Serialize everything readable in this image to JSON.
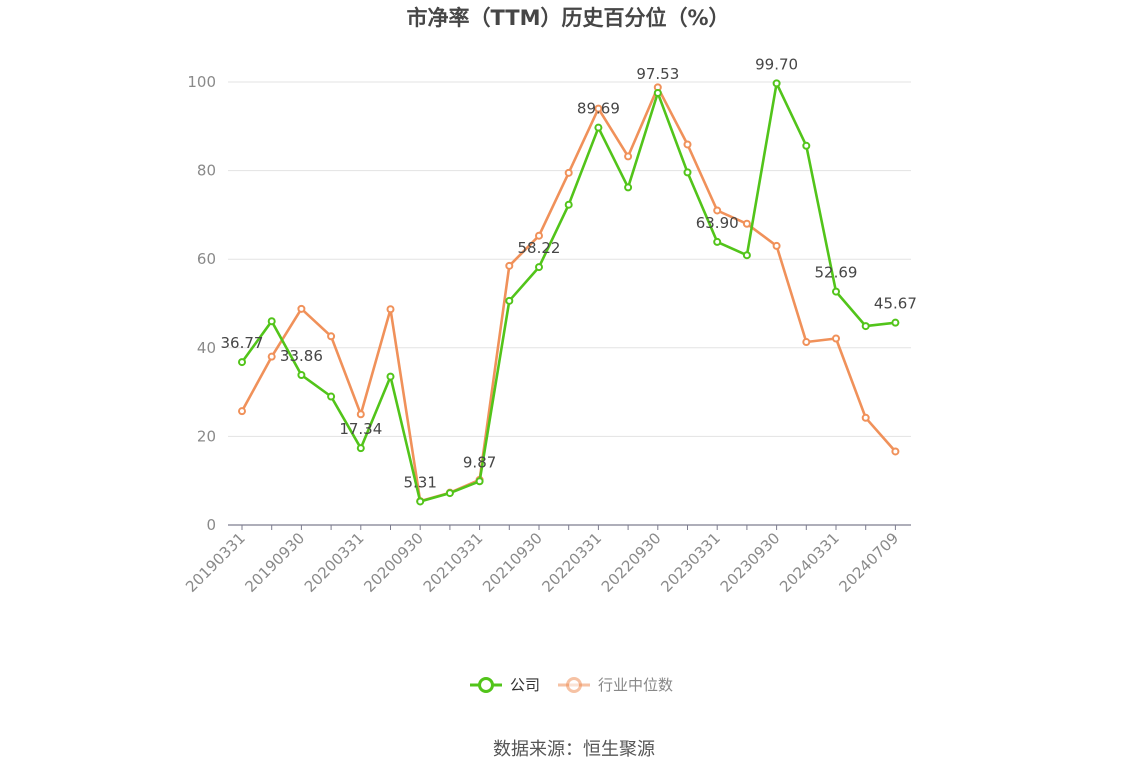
{
  "chart_data": {
    "type": "line",
    "title": "市净率（TTM）历史百分位（%）",
    "source": "数据来源：恒生聚源",
    "ylim": [
      0,
      100
    ],
    "yticks": [
      0,
      20,
      40,
      60,
      80,
      100
    ],
    "x": [
      "20190331",
      "20190630",
      "20190930",
      "20191231",
      "20200331",
      "20200630",
      "20200930",
      "20201231",
      "20210331",
      "20210630",
      "20210930",
      "20211231",
      "20220331",
      "20220630",
      "20220930",
      "20221231",
      "20230331",
      "20230630",
      "20230930",
      "20231231",
      "20240331",
      "20240630",
      "20240709"
    ],
    "xtick_labels": [
      "20190331",
      "20190930",
      "20200331",
      "20200930",
      "20210331",
      "20210930",
      "20220331",
      "20220930",
      "20230331",
      "20230930",
      "20240331",
      "20240709"
    ],
    "grid": true,
    "legend_position": "bottom",
    "series": [
      {
        "name": "公司",
        "color": "#52c41a",
        "values": [
          36.77,
          46.0,
          33.86,
          29.0,
          17.34,
          33.5,
          5.31,
          7.2,
          9.87,
          50.6,
          58.22,
          72.3,
          89.69,
          76.2,
          97.53,
          79.6,
          63.9,
          60.9,
          99.7,
          85.6,
          52.69,
          44.9,
          45.67
        ],
        "labels": {
          "0": "36.77",
          "2": "33.86",
          "4": "17.34",
          "6": "5.31",
          "8": "9.87",
          "10": "58.22",
          "12": "89.69",
          "14": "97.53",
          "16": "63.90",
          "18": "99.70",
          "20": "52.69",
          "22": "45.67"
        }
      },
      {
        "name": "行业中位数",
        "color": "#f0915a",
        "values": [
          25.7,
          38.0,
          48.8,
          42.6,
          25.0,
          48.7,
          5.4,
          7.3,
          10.2,
          58.5,
          65.3,
          79.5,
          94.0,
          83.2,
          98.8,
          85.9,
          71.0,
          68.0,
          63.0,
          41.3,
          42.1,
          24.2,
          16.6
        ]
      }
    ]
  }
}
